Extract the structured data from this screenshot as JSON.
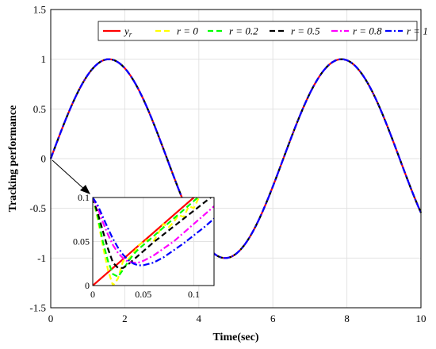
{
  "chart_data": {
    "type": "line",
    "xlabel": "Time(sec)",
    "ylabel": "Tracking performance",
    "xlim": [
      0,
      10
    ],
    "ylim": [
      -1.5,
      1.5
    ],
    "xticks": [
      "0",
      "2",
      "4",
      "6",
      "8",
      "10"
    ],
    "yticks": [
      "-1.5",
      "-1",
      "-0.5",
      "0",
      "0.5",
      "1",
      "1.5"
    ],
    "grid": true,
    "legend_position": "top",
    "reference": "y_r = sin(t)",
    "series": [
      {
        "name": "y_r",
        "label_base": "y",
        "label_sub": "r",
        "color": "#ff0000",
        "dash": "solid",
        "t": [
          0.0,
          0.002,
          0.01,
          0.02,
          0.03,
          0.04,
          0.05,
          0.06,
          0.07,
          0.08,
          0.09,
          0.1,
          0.11,
          0.12
        ],
        "y": [
          0.0,
          0.002,
          0.01,
          0.02,
          0.03,
          0.04,
          0.05,
          0.06,
          0.07,
          0.08,
          0.09,
          0.1,
          0.11,
          0.12
        ]
      },
      {
        "name": "r = 0",
        "color": "#ffff00",
        "dash": "dashed",
        "t": [
          0.0,
          0.005,
          0.01,
          0.015,
          0.02,
          0.025,
          0.03,
          0.035,
          0.04,
          0.045,
          0.05,
          0.055,
          0.06,
          0.065,
          0.07,
          0.075,
          0.08,
          0.085,
          0.09,
          0.095,
          0.1,
          0.105,
          0.11,
          0.115,
          0.12
        ],
        "y": [
          0.1,
          0.075,
          0.045,
          0.018,
          0.0,
          0.008,
          0.028,
          0.03,
          0.036,
          0.045,
          0.05,
          0.052,
          0.05,
          0.06,
          0.07,
          0.066,
          0.072,
          0.08,
          0.078,
          0.09,
          0.088,
          0.1,
          0.105,
          0.11,
          0.12
        ]
      },
      {
        "name": "r = 0.2",
        "color": "#00ff00",
        "dash": "dashed",
        "t": [
          0.0,
          0.005,
          0.01,
          0.015,
          0.02,
          0.025,
          0.03,
          0.035,
          0.04,
          0.045,
          0.05,
          0.06,
          0.07,
          0.08,
          0.09,
          0.1,
          0.11,
          0.12
        ],
        "y": [
          0.1,
          0.078,
          0.05,
          0.028,
          0.013,
          0.01,
          0.018,
          0.027,
          0.035,
          0.041,
          0.046,
          0.056,
          0.066,
          0.076,
          0.086,
          0.096,
          0.106,
          0.116
        ]
      },
      {
        "name": "r = 0.5",
        "color": "#000000",
        "dash": "dashed",
        "t": [
          0.0,
          0.005,
          0.01,
          0.015,
          0.02,
          0.025,
          0.03,
          0.035,
          0.04,
          0.05,
          0.06,
          0.07,
          0.08,
          0.09,
          0.1,
          0.11,
          0.12
        ],
        "y": [
          0.1,
          0.082,
          0.062,
          0.042,
          0.026,
          0.02,
          0.02,
          0.024,
          0.029,
          0.039,
          0.049,
          0.058,
          0.067,
          0.076,
          0.085,
          0.094,
          0.103
        ]
      },
      {
        "name": "r = 0.8",
        "color": "#ff00ff",
        "dash": "dashdot",
        "t": [
          0.0,
          0.005,
          0.01,
          0.015,
          0.02,
          0.025,
          0.03,
          0.035,
          0.04,
          0.045,
          0.05,
          0.06,
          0.07,
          0.08,
          0.09,
          0.1,
          0.11,
          0.12
        ],
        "y": [
          0.1,
          0.088,
          0.072,
          0.058,
          0.046,
          0.037,
          0.031,
          0.027,
          0.026,
          0.026,
          0.028,
          0.034,
          0.042,
          0.05,
          0.06,
          0.07,
          0.08,
          0.09
        ]
      },
      {
        "name": "r = 1",
        "color": "#0000ff",
        "dash": "dashdot",
        "t": [
          0.0,
          0.005,
          0.01,
          0.015,
          0.02,
          0.025,
          0.03,
          0.035,
          0.04,
          0.045,
          0.05,
          0.06,
          0.07,
          0.08,
          0.09,
          0.1,
          0.11,
          0.12
        ],
        "y": [
          0.1,
          0.091,
          0.078,
          0.065,
          0.053,
          0.043,
          0.035,
          0.029,
          0.025,
          0.023,
          0.023,
          0.026,
          0.032,
          0.04,
          0.048,
          0.057,
          0.066,
          0.076
        ]
      }
    ],
    "inset": {
      "xlim": [
        0,
        0.12
      ],
      "ylim": [
        0,
        0.1
      ],
      "xticks": [
        "0",
        "0.05",
        "0.1"
      ],
      "yticks": [
        "0",
        "0.05",
        "0.1"
      ]
    }
  }
}
